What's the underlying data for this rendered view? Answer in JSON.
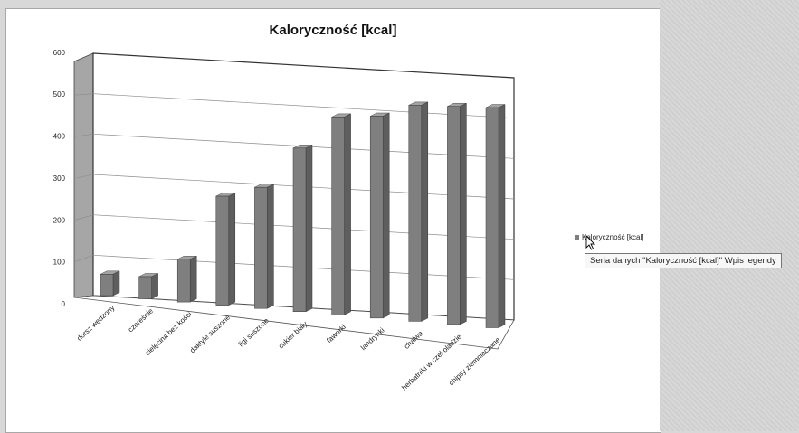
{
  "chart_data": {
    "type": "bar",
    "title": "Kaloryczność [kcal]",
    "categories": [
      "dorsz wędzony",
      "czereśnie",
      "cielęcina bez kości",
      "daktyle suszone",
      "figi suszone",
      "cukier biały",
      "faworki",
      "landrynki",
      "chałwa",
      "herbatniki w czekoladzie",
      "chipsy ziemniaczane"
    ],
    "series": [
      {
        "name": "Kaloryczność [kcal]",
        "values": [
          53,
          55,
          106,
          270,
          300,
          405,
          490,
          500,
          535,
          540,
          545
        ]
      }
    ],
    "ylim": [
      0,
      600
    ],
    "yticks": [
      0,
      100,
      200,
      300,
      400,
      500,
      600
    ],
    "grid": true,
    "legend": "right",
    "bar_color": "#7f7f7f"
  },
  "tooltip": {
    "text": "Seria danych \"Kaloryczność [kcal]\" Wpis legendy"
  }
}
